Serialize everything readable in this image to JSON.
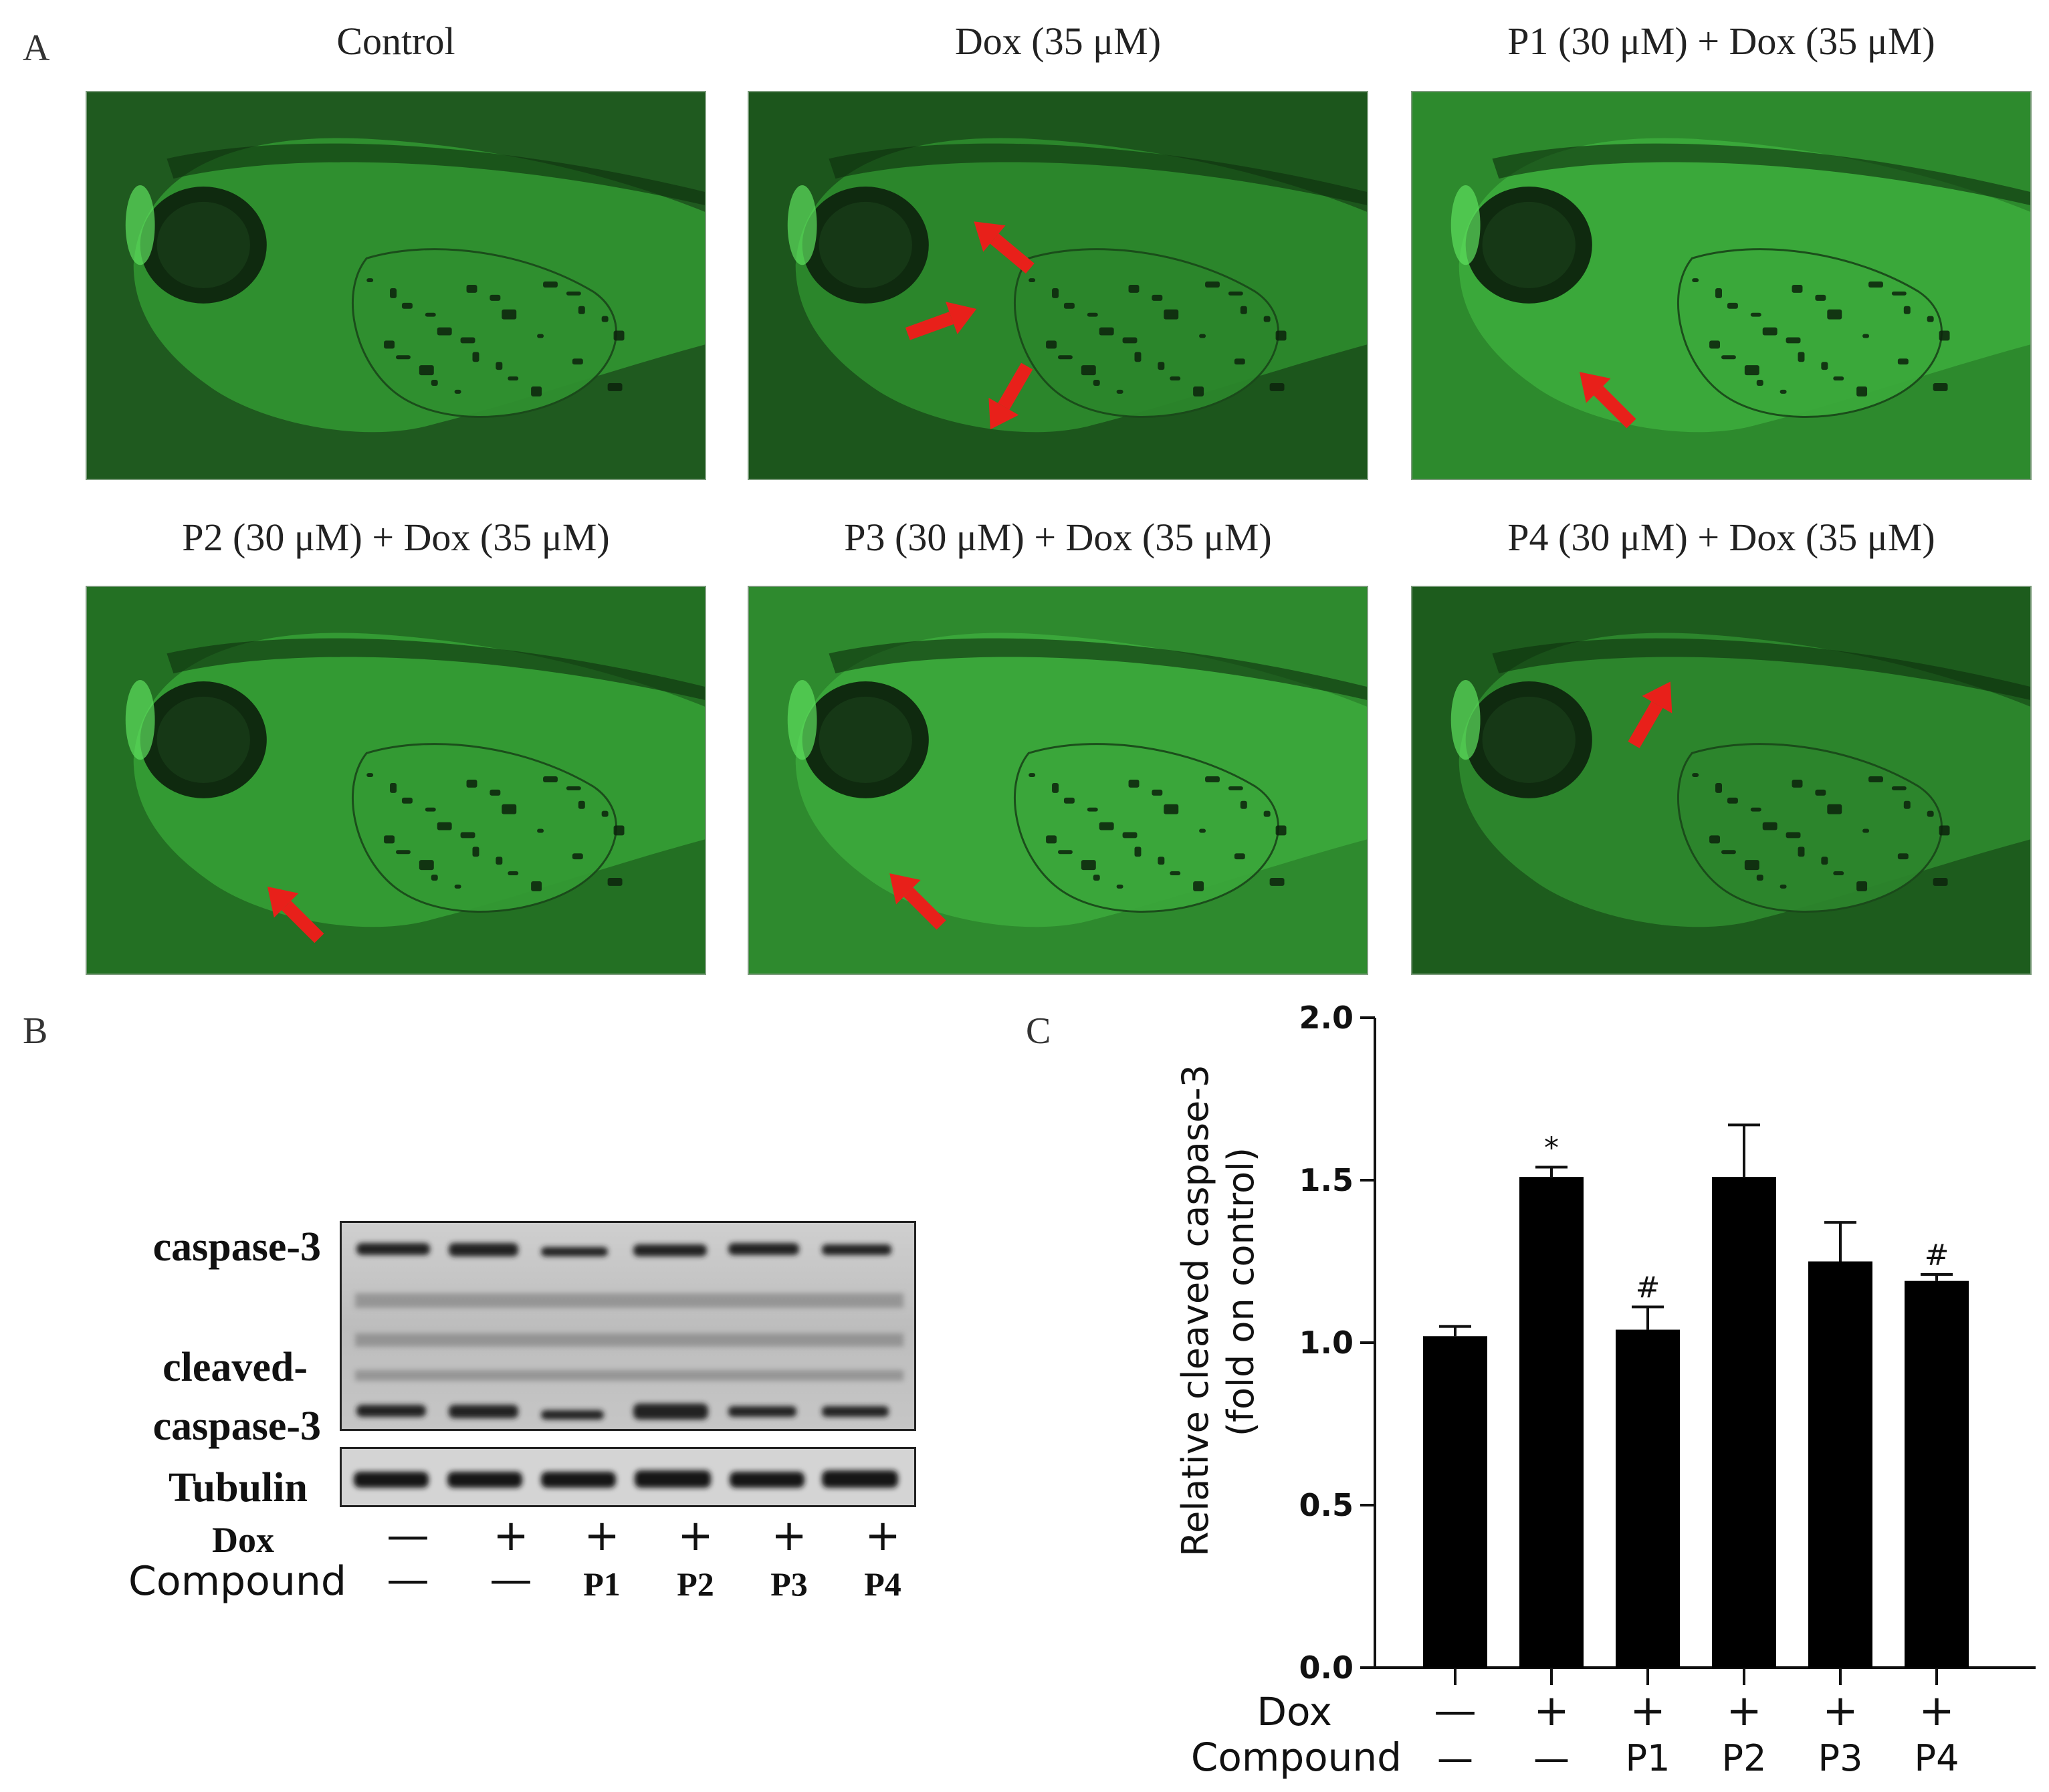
{
  "panel_a": {
    "letter": "A",
    "images": [
      {
        "title": "Control",
        "arrows": 0
      },
      {
        "title": "Dox (35 μM)",
        "arrows": 3
      },
      {
        "title": "P1 (30 μM) + Dox (35 μM)",
        "arrows": 1
      },
      {
        "title": "P2 (30 μM) + Dox (35 μM)",
        "arrows": 1
      },
      {
        "title": "P3 (30 μM) + Dox (35 μM)",
        "arrows": 1
      },
      {
        "title": "P4 (30 μM) + Dox (35 μM)",
        "arrows": 1
      }
    ]
  },
  "panel_b": {
    "letter": "B",
    "band_labels": {
      "caspase3": "caspase-3",
      "cleaved_1": "cleaved-",
      "cleaved_2": "caspase-3",
      "tubulin": "Tubulin"
    },
    "row_labels": {
      "dox": "Dox",
      "compound": "Compound"
    },
    "dox": [
      "—",
      "+",
      "+",
      "+",
      "+",
      "+"
    ],
    "compound": [
      "—",
      "—",
      "P1",
      "P2",
      "P3",
      "P4"
    ]
  },
  "panel_c": {
    "letter": "C"
  },
  "chart_data": {
    "type": "bar",
    "categories": [
      "Control",
      "Dox",
      "P1 + Dox",
      "P2 + Dox",
      "P3 + Dox",
      "P4 + Dox"
    ],
    "values": [
      1.02,
      1.51,
      1.04,
      1.51,
      1.25,
      1.19
    ],
    "errors": [
      0.03,
      0.03,
      0.07,
      0.16,
      0.12,
      0.02
    ],
    "annotations": [
      "",
      "*",
      "#",
      "",
      "",
      "#"
    ],
    "ylabel_line1": "Relative cleaved caspase-3",
    "ylabel_line2": "(fold on control)",
    "ylim": [
      0,
      2.0
    ],
    "yticks": [
      "0.0",
      "0.5",
      "1.0",
      "1.5",
      "2.0"
    ],
    "row_labels": {
      "dox": "Dox",
      "compound": "Compound"
    },
    "dox": [
      "—",
      "+",
      "+",
      "+",
      "+",
      "+"
    ],
    "compound": [
      "—",
      "—",
      "P1",
      "P2",
      "P3",
      "P4"
    ],
    "bar_color": "#000000",
    "grid": false
  }
}
